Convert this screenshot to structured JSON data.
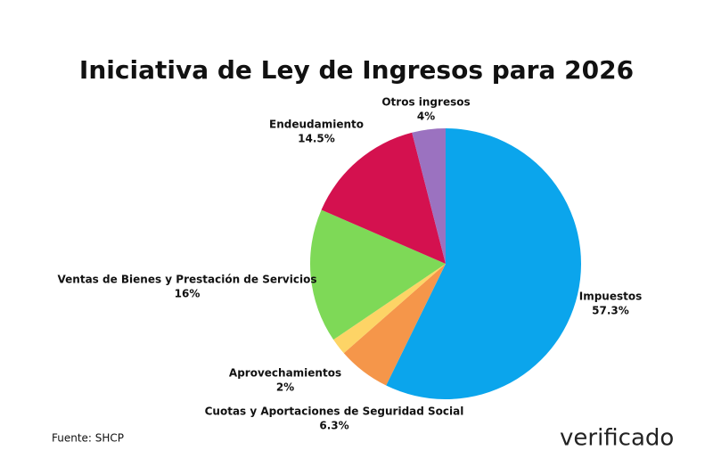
{
  "chart_data": {
    "type": "pie",
    "title": "Iniciativa de Ley de Ingresos para 2026",
    "categories": [
      "Impuestos",
      "Cuotas y Aportaciones de Seguridad Social",
      "Aprovechamientos",
      "Ventas de Bienes y Prestación de Servicios",
      "Endeudamiento",
      "Otros ingresos"
    ],
    "values": [
      57.3,
      6.3,
      2,
      16,
      14.5,
      4
    ],
    "value_labels": [
      "57.3%",
      "6.3%",
      "2%",
      "16%",
      "14.5%",
      "4%"
    ],
    "colors": [
      "#0ba5ec",
      "#f5964a",
      "#fdd466",
      "#7ed957",
      "#d4114f",
      "#9b72c0"
    ],
    "source": "Fuente: SHCP",
    "logo": "verificado"
  }
}
